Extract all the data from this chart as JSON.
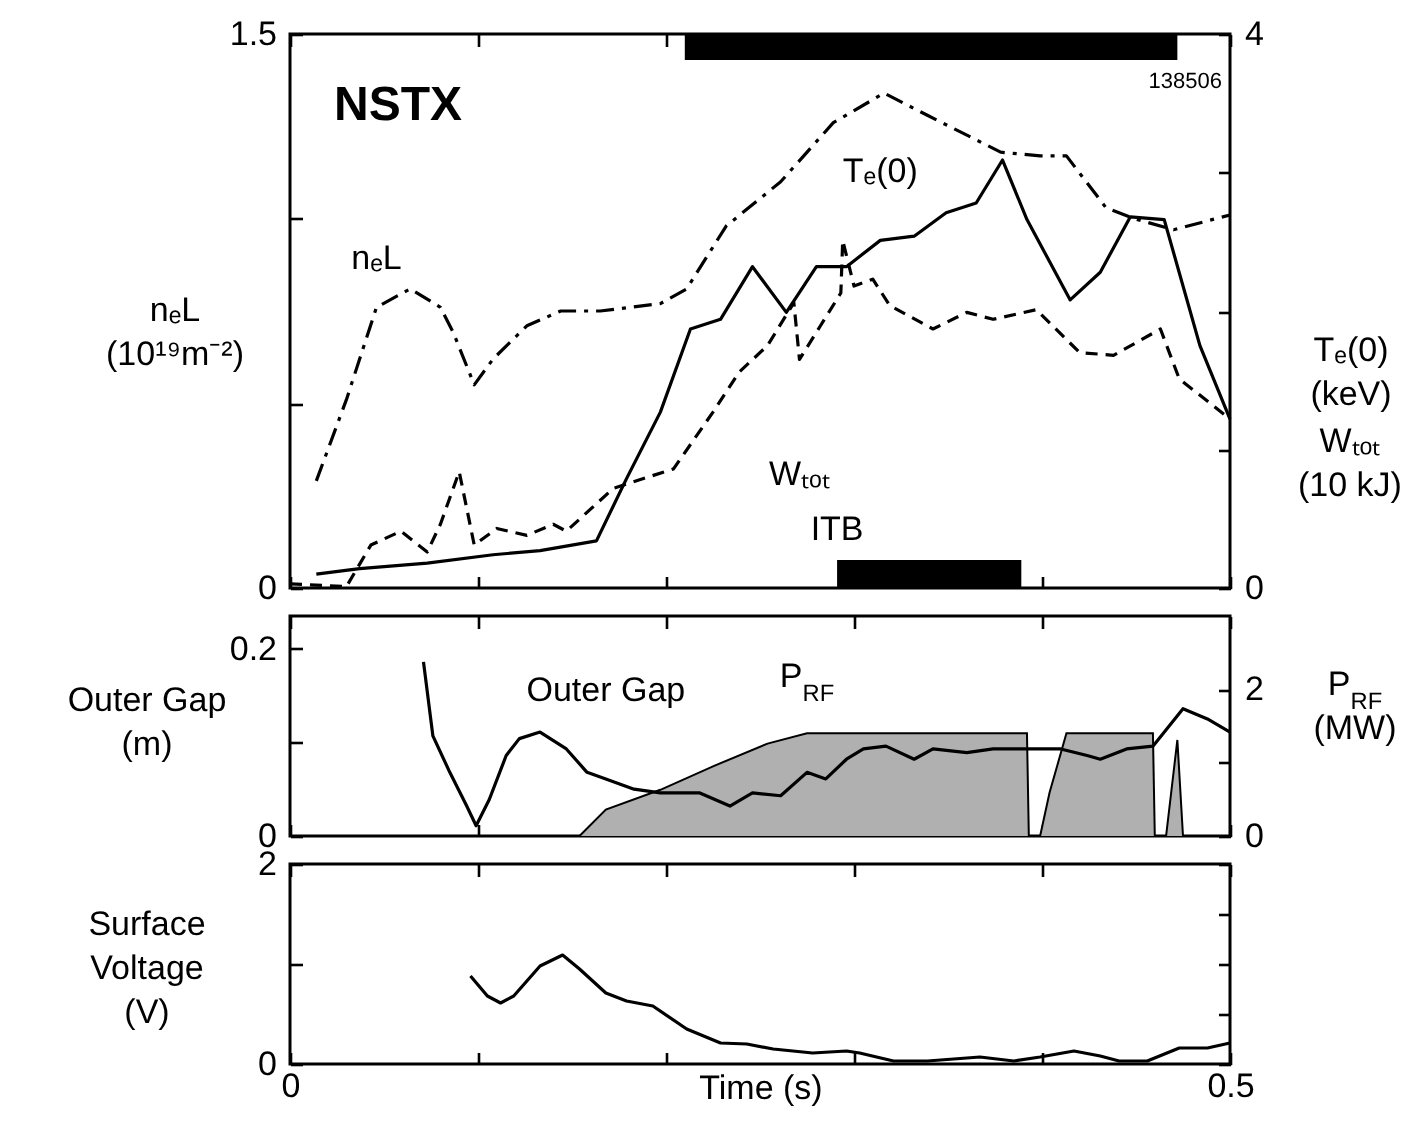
{
  "chart_data": [
    {
      "type": "line",
      "ylabel": "nₑL (10¹⁹m⁻²)",
      "y2label": "Tₑ(0) (keV)",
      "annotations": [
        "NSTX",
        "138506",
        "Wₜₒₜ (10 kJ)"
      ],
      "xlim": [
        0,
        0.5
      ],
      "xticks": [
        0,
        0.1,
        0.2,
        0.3,
        0.4,
        0.5
      ],
      "tick_labels": "y",
      "ylim": [
        0,
        1.5
      ],
      "yticks": [
        0,
        {
          "value": 0.5,
          "label": null
        },
        {
          "value": 1,
          "label": null
        },
        1.5
      ],
      "y2lim": [
        0,
        4
      ],
      "y2ticks": [
        0,
        {
          "value": 1,
          "label": null
        },
        {
          "value": 2,
          "label": null
        },
        {
          "value": 3,
          "label": null
        },
        4
      ],
      "bands": [
        {
          "axis": "x",
          "from": 0.21,
          "to": 0.472,
          "color": "#000000"
        },
        {
          "axis": "x",
          "from": 0.291,
          "to": 0.389,
          "label": "ITB",
          "color": "#000000"
        }
      ],
      "series": [
        {
          "name": "nₑL",
          "color": "#000000",
          "line_style": "dashdot",
          "x": [
            0.014,
            0.03,
            0.046,
            0.064,
            0.08,
            0.087,
            0.098,
            0.108,
            0.126,
            0.144,
            0.165,
            0.197,
            0.211,
            0.232,
            0.261,
            0.289,
            0.316,
            0.339,
            0.378,
            0.399,
            0.413,
            0.434,
            0.449,
            0.47,
            0.5
          ],
          "values": [
            0.29,
            0.51,
            0.76,
            0.81,
            0.76,
            0.69,
            0.55,
            0.62,
            0.71,
            0.75,
            0.75,
            0.77,
            0.81,
            0.98,
            1.1,
            1.26,
            1.34,
            1.28,
            1.18,
            1.17,
            1.17,
            1.03,
            1.0,
            0.97,
            1.01
          ]
        },
        {
          "name": "Tₑ(0)",
          "color": "#000000",
          "line_style": "solid",
          "axis": "y2",
          "x": [
            0.014,
            0.037,
            0.073,
            0.108,
            0.133,
            0.163,
            0.179,
            0.197,
            0.213,
            0.229,
            0.246,
            0.264,
            0.28,
            0.296,
            0.314,
            0.332,
            0.349,
            0.365,
            0.379,
            0.392,
            0.415,
            0.431,
            0.447,
            0.465,
            0.484,
            0.5
          ],
          "values": [
            0.1,
            0.14,
            0.18,
            0.24,
            0.27,
            0.34,
            0.79,
            1.27,
            1.87,
            1.94,
            2.32,
            1.99,
            2.32,
            2.32,
            2.51,
            2.54,
            2.71,
            2.78,
            3.09,
            2.66,
            2.08,
            2.28,
            2.68,
            2.66,
            1.75,
            1.22
          ]
        },
        {
          "name": "Wₜₒₜ",
          "color": "#000000",
          "line_style": "dashed",
          "axis": "y2",
          "x": [
            0,
            0.03,
            0.043,
            0.059,
            0.073,
            0.08,
            0.09,
            0.098,
            0.11,
            0.126,
            0.14,
            0.147,
            0.172,
            0.204,
            0.225,
            0.239,
            0.254,
            0.268,
            0.271,
            0.282,
            0.293,
            0.294,
            0.3,
            0.31,
            0.319,
            0.342,
            0.36,
            0.374,
            0.397,
            0.42,
            0.438,
            0.463,
            0.473,
            0.5
          ],
          "values": [
            0.03,
            0.01,
            0.31,
            0.41,
            0.26,
            0.46,
            0.84,
            0.31,
            0.43,
            0.38,
            0.46,
            0.41,
            0.72,
            0.86,
            1.27,
            1.56,
            1.75,
            2.06,
            1.65,
            1.89,
            2.13,
            2.51,
            2.18,
            2.23,
            2.04,
            1.87,
            1.99,
            1.94,
            2.01,
            1.7,
            1.68,
            1.87,
            1.51,
            1.22
          ]
        }
      ]
    },
    {
      "type": "line",
      "ylabel": "Outer Gap (m)",
      "y2label": "P$_{RF}$ (MW)",
      "xlim": [
        0,
        0.5
      ],
      "xticks": [
        0,
        0.1,
        0.2,
        0.3,
        0.4,
        0.5
      ],
      "tick_labels": "y",
      "ylim": [
        0,
        0.235
      ],
      "yticks": [
        0,
        {
          "value": 0.1,
          "label": null
        },
        0.2
      ],
      "y2lim": [
        0,
        3
      ],
      "y2ticks": [
        0,
        {
          "value": 1,
          "label": null
        },
        2
      ],
      "series": [
        {
          "name": "Outer Gap",
          "color": "#000000",
          "line_style": "solid",
          "x": [
            0.071,
            0.076,
            0.085,
            0.094,
            0.099,
            0.106,
            0.115,
            0.122,
            0.133,
            0.147,
            0.158,
            0.168,
            0.183,
            0.197,
            0.218,
            0.234,
            0.246,
            0.261,
            0.275,
            0.285,
            0.296,
            0.305,
            0.317,
            0.332,
            0.342,
            0.36,
            0.374,
            0.392,
            0.41,
            0.424,
            0.431,
            0.445,
            0.459,
            0.475,
            0.488,
            0.5
          ],
          "values": [
            0.186,
            0.107,
            0.068,
            0.032,
            0.011,
            0.039,
            0.086,
            0.104,
            0.111,
            0.093,
            0.068,
            0.061,
            0.05,
            0.046,
            0.046,
            0.032,
            0.046,
            0.043,
            0.068,
            0.061,
            0.082,
            0.093,
            0.096,
            0.082,
            0.093,
            0.089,
            0.093,
            0.093,
            0.093,
            0.086,
            0.082,
            0.093,
            0.096,
            0.136,
            0.125,
            0.111
          ]
        },
        {
          "name": "P$_{RF}$",
          "type": "area",
          "color": "#b0b0b0",
          "axis": "y2",
          "x": [
            0.154,
            0.168,
            0.197,
            0.225,
            0.254,
            0.275,
            0.392,
            0.393,
            0.399,
            0.404,
            0.413,
            0.459,
            0.46,
            0.466,
            0.472,
            0.475
          ],
          "values": [
            0,
            0.36,
            0.63,
            0.95,
            1.26,
            1.4,
            1.4,
            0,
            0,
            0.59,
            1.4,
            1.4,
            0,
            0,
            1.31,
            0
          ]
        }
      ]
    },
    {
      "type": "line",
      "ylabel": "Surface Voltage (V)",
      "xlabel": "Time (s)",
      "xlim": [
        0,
        0.5
      ],
      "xticks": [
        0,
        {
          "value": 0.1,
          "label": null
        },
        {
          "value": 0.2,
          "label": null
        },
        {
          "value": 0.3,
          "label": null
        },
        {
          "value": 0.4,
          "label": null
        },
        0.5
      ],
      "ylim": [
        0,
        2
      ],
      "yticks": [
        0,
        {
          "value": 0.5,
          "label": null
        },
        {
          "value": 1,
          "label": null
        },
        {
          "value": 1.5,
          "label": null
        },
        2
      ],
      "series": [
        {
          "color": "#000000",
          "line_style": "solid",
          "x": [
            0.096,
            0.105,
            0.112,
            0.119,
            0.133,
            0.145,
            0.154,
            0.168,
            0.179,
            0.193,
            0.211,
            0.229,
            0.243,
            0.257,
            0.278,
            0.296,
            0.303,
            0.321,
            0.339,
            0.367,
            0.385,
            0.399,
            0.417,
            0.431,
            0.441,
            0.456,
            0.473,
            0.488,
            0.5
          ],
          "values": [
            0.88,
            0.68,
            0.61,
            0.68,
            0.98,
            1.09,
            0.95,
            0.71,
            0.63,
            0.58,
            0.35,
            0.21,
            0.2,
            0.15,
            0.11,
            0.13,
            0.11,
            0.03,
            0.03,
            0.07,
            0.03,
            0.07,
            0.13,
            0.08,
            0.03,
            0.03,
            0.16,
            0.16,
            0.21
          ]
        }
      ]
    }
  ]
}
